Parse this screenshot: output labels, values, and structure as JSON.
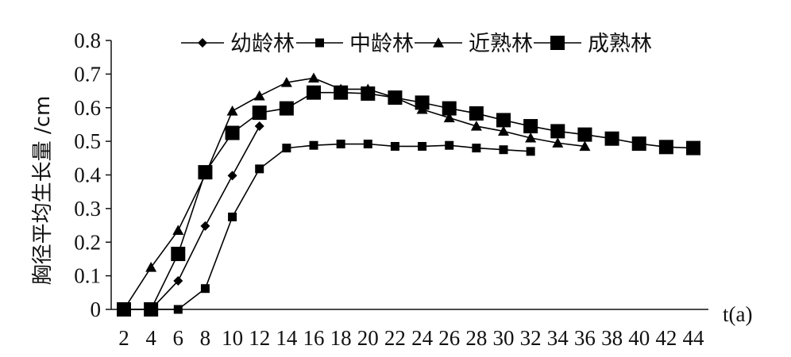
{
  "chart_data": {
    "type": "line",
    "title": "",
    "xlabel": "t(a)",
    "ylabel": "胸径平均生长量 /cm",
    "xlim": [
      2,
      44
    ],
    "ylim": [
      0,
      0.8
    ],
    "xticks": [
      2,
      4,
      6,
      8,
      10,
      12,
      14,
      16,
      18,
      20,
      22,
      24,
      26,
      28,
      30,
      32,
      34,
      36,
      38,
      40,
      42,
      44
    ],
    "yticks": [
      "0",
      "0.1",
      "0.2",
      "0.3",
      "0.4",
      "0.5",
      "0.6",
      "0.7",
      "0.8"
    ],
    "grid": false,
    "legend_position": "top",
    "series": [
      {
        "name": "幼龄林",
        "marker": "diamond",
        "color": "#000000",
        "x": [
          2,
          4,
          6,
          8,
          10,
          12
        ],
        "y": [
          0,
          0,
          0.085,
          0.248,
          0.398,
          0.545
        ]
      },
      {
        "name": "中龄林",
        "marker": "small-square",
        "color": "#000000",
        "x": [
          2,
          4,
          6,
          8,
          10,
          12,
          14,
          16,
          18,
          20,
          22,
          24,
          26,
          28,
          30,
          32
        ],
        "y": [
          0,
          0,
          0,
          0.062,
          0.275,
          0.418,
          0.48,
          0.488,
          0.492,
          0.492,
          0.485,
          0.485,
          0.488,
          0.48,
          0.475,
          0.47
        ]
      },
      {
        "name": "近熟林",
        "marker": "triangle",
        "color": "#000000",
        "x": [
          2,
          4,
          6,
          8,
          10,
          12,
          14,
          16,
          18,
          20,
          22,
          24,
          26,
          28,
          30,
          32,
          34,
          36
        ],
        "y": [
          0,
          0.125,
          0.235,
          0.4,
          0.59,
          0.635,
          0.675,
          0.688,
          0.655,
          0.655,
          0.63,
          0.595,
          0.57,
          0.545,
          0.53,
          0.51,
          0.495,
          0.485
        ]
      },
      {
        "name": "成熟林",
        "marker": "large-square",
        "color": "#000000",
        "x": [
          2,
          4,
          6,
          8,
          10,
          12,
          14,
          16,
          18,
          20,
          22,
          24,
          26,
          28,
          30,
          32,
          34,
          36,
          38,
          40,
          42,
          44
        ],
        "y": [
          0,
          0,
          0.165,
          0.408,
          0.525,
          0.585,
          0.598,
          0.645,
          0.645,
          0.642,
          0.63,
          0.615,
          0.598,
          0.583,
          0.563,
          0.545,
          0.53,
          0.52,
          0.508,
          0.493,
          0.483,
          0.48
        ]
      }
    ]
  }
}
